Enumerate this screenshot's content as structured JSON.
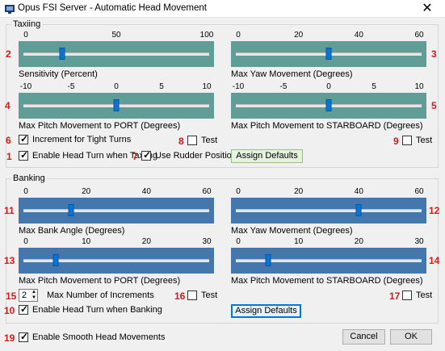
{
  "window": {
    "title": "Opus FSI Server - Automatic Head Movement",
    "close_label": "✕"
  },
  "colors": {
    "taxi_slider_bg": "#5f9d96",
    "bank_slider_bg": "#4477ae",
    "thumb": "#0a74d1",
    "marker_red": "#d11a1a"
  },
  "taxiing": {
    "group_label": "Taxiing",
    "sensitivity": {
      "marker": "2",
      "label": "Sensitivity (Percent)",
      "ticks": [
        "0",
        "50",
        "100"
      ],
      "min": 0,
      "max": 100,
      "value": 20
    },
    "max_yaw": {
      "marker": "3",
      "label": "Max Yaw Movement (Degrees)",
      "ticks": [
        "0",
        "20",
        "40",
        "60"
      ],
      "min": 0,
      "max": 60,
      "value": 30
    },
    "pitch_port": {
      "marker": "4",
      "label": "Max Pitch Movement to PORT (Degrees)",
      "ticks": [
        "-10",
        "-5",
        "0",
        "5",
        "10"
      ],
      "min": -10,
      "max": 10,
      "value": 0
    },
    "pitch_starboard": {
      "marker": "5",
      "label": "Max Pitch Movement to STARBOARD (Degrees)",
      "ticks": [
        "-10",
        "-5",
        "0",
        "5",
        "10"
      ],
      "min": -10,
      "max": 10,
      "value": 0
    },
    "increment_tight_turns": {
      "marker": "6",
      "label": "Increment for Tight Turns",
      "checked": true
    },
    "test_port": {
      "marker": "8",
      "label": "Test",
      "checked": false
    },
    "test_starboard": {
      "marker": "9",
      "label": "Test",
      "checked": false
    },
    "enable_head_turn": {
      "marker": "1",
      "label": "Enable Head Turn when Taxiing",
      "checked": true
    },
    "use_rudder": {
      "marker": "7",
      "label": "Use Rudder Position",
      "checked": true
    },
    "assign_defaults": "Assign Defaults"
  },
  "banking": {
    "group_label": "Banking",
    "max_bank": {
      "marker": "11",
      "label": "Max Bank Angle (Degrees)",
      "ticks": [
        "0",
        "20",
        "40",
        "60"
      ],
      "min": 0,
      "max": 60,
      "value": 15
    },
    "max_yaw": {
      "marker": "12",
      "label": "Max Yaw Movement (Degrees)",
      "ticks": [
        "0",
        "20",
        "40",
        "60"
      ],
      "min": 0,
      "max": 60,
      "value": 40
    },
    "pitch_port": {
      "marker": "13",
      "label": "Max Pitch Movement to PORT (Degrees)",
      "ticks": [
        "0",
        "10",
        "20",
        "30"
      ],
      "min": 0,
      "max": 30,
      "value": 5
    },
    "pitch_starboard": {
      "marker": "14",
      "label": "Max Pitch Movement to STARBOARD (Degrees)",
      "ticks": [
        "0",
        "10",
        "20",
        "30"
      ],
      "min": 0,
      "max": 30,
      "value": 5
    },
    "increments": {
      "marker": "15",
      "value": "2",
      "label": "Max Number of Increments"
    },
    "test_port": {
      "marker": "16",
      "label": "Test",
      "checked": false
    },
    "test_starboard": {
      "marker": "17",
      "label": "Test",
      "checked": false
    },
    "enable_head_turn": {
      "marker": "10",
      "label": "Enable Head Turn when Banking",
      "checked": true
    },
    "assign_defaults": "Assign Defaults"
  },
  "smooth": {
    "marker": "19",
    "label": "Enable Smooth Head Movements",
    "checked": true
  },
  "footer": {
    "cancel": "Cancel",
    "ok": "OK"
  }
}
